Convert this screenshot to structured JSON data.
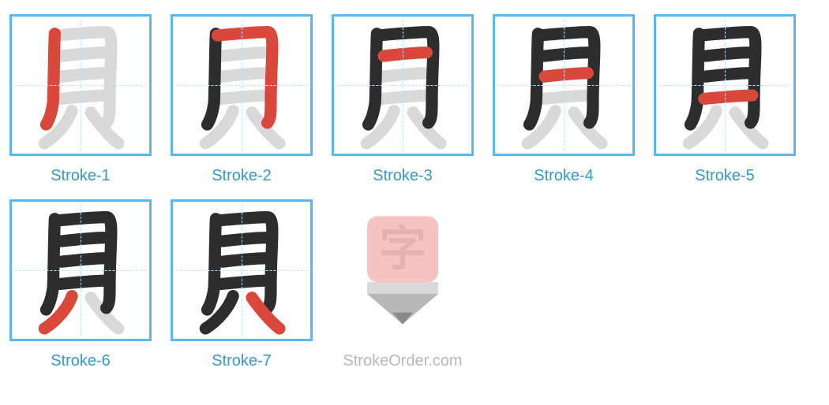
{
  "tile": {
    "border_color": "#59b8f0",
    "guide_color": "#bfe4fa"
  },
  "caption_color": "#3399cc",
  "stroke_colors": {
    "active": "#d9483b",
    "done": "#2d2d2d",
    "pending": "#d9d9d9"
  },
  "glyph_paths": [
    "M34 20 C33 42 33 72 32 100 C31 108 29 118 24 126",
    "M36 22 C58 20 80 18 94 18 C104 18 98 48 98 100 C98 112 98 120 94 124",
    "M42 46 C60 44 80 42 92 42",
    "M42 70 C60 68 80 66 92 66",
    "M40 96 C62 94 82 92 96 92",
    "M54 110 C50 122 38 138 22 148",
    "M76 112 C86 126 98 140 108 148"
  ],
  "strokes": [
    {
      "label": "Stroke-1"
    },
    {
      "label": "Stroke-2"
    },
    {
      "label": "Stroke-3"
    },
    {
      "label": "Stroke-4"
    },
    {
      "label": "Stroke-5"
    },
    {
      "label": "Stroke-6"
    },
    {
      "label": "Stroke-7"
    }
  ],
  "watermark": {
    "label": "StrokeOrder.com",
    "label_color": "#b8b8b8",
    "char": "字",
    "top_color": "#f6c3c3",
    "char_color": "#e9b0b0",
    "tip_color": "#b8b8b8",
    "band_color": "#d9d9d9"
  }
}
